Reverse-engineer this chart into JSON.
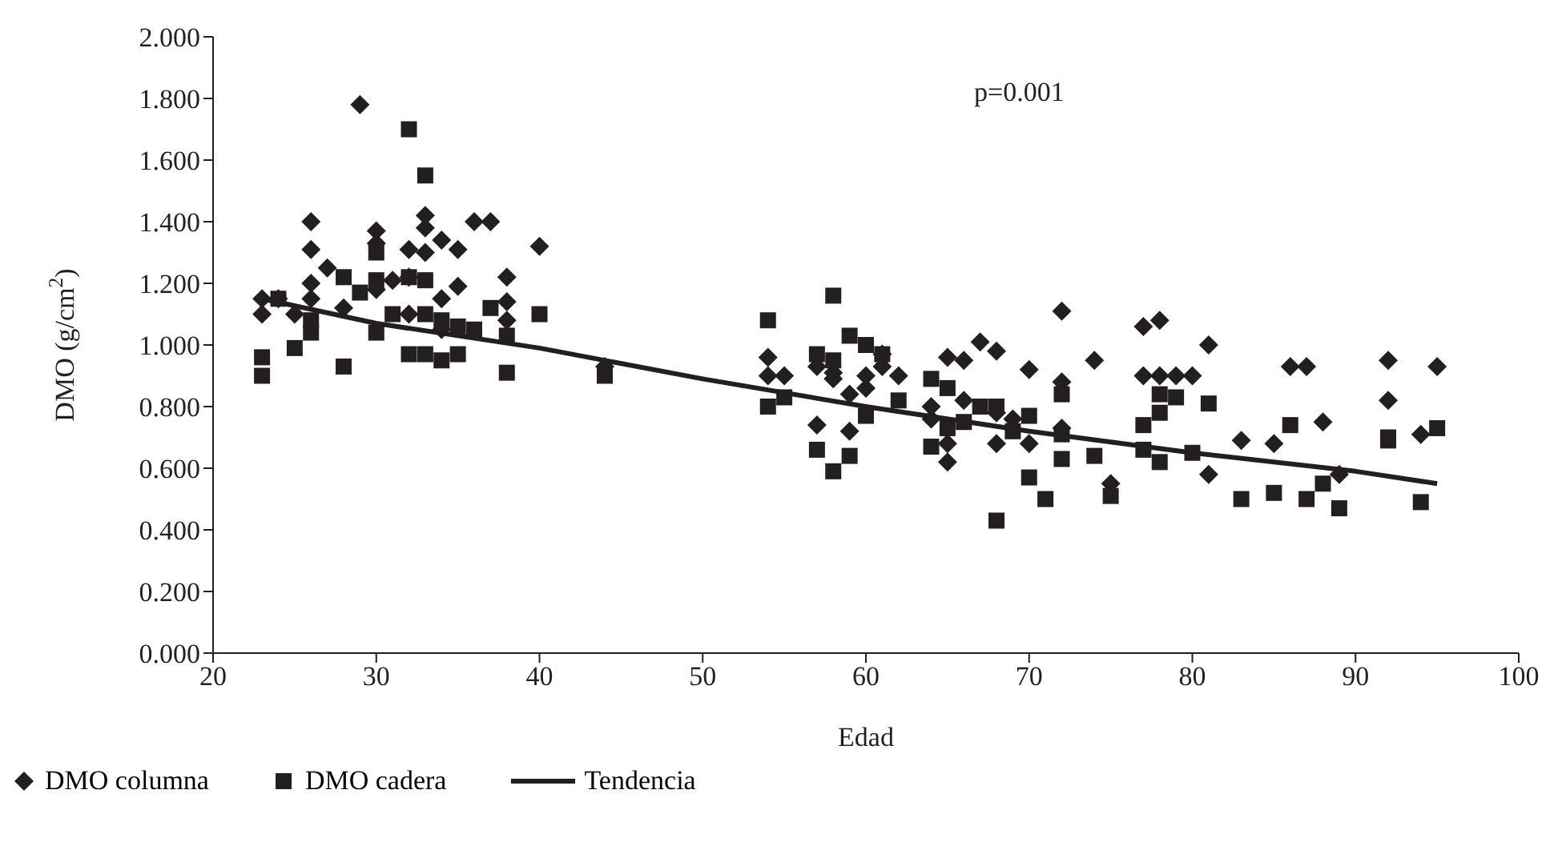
{
  "chart_data": {
    "type": "scatter",
    "xlabel": "Edad",
    "ylabel": "DMO (g/cm$^{2}$)",
    "xlim": [
      20,
      100
    ],
    "xticks": [
      20,
      30,
      40,
      50,
      60,
      70,
      80,
      90,
      100
    ],
    "ylim": [
      0,
      2
    ],
    "yticks": [
      {
        "value": 0,
        "label": "0.000"
      },
      {
        "value": 0.2,
        "label": "0.200"
      },
      {
        "value": 0.4,
        "label": "0.400"
      },
      {
        "value": 0.6,
        "label": "0.600"
      },
      {
        "value": 0.8,
        "label": "0.800"
      },
      {
        "value": 1,
        "label": "1.000"
      },
      {
        "value": 1.2,
        "label": "1.200"
      },
      {
        "value": 1.4,
        "label": "1.400"
      },
      {
        "value": 1.6,
        "label": "1.600"
      },
      {
        "value": 1.8,
        "label": "1.800"
      },
      {
        "value": 2,
        "label": "2.000"
      }
    ],
    "legend": "bottom left",
    "annotations": [
      {
        "text": "p=0.001"
      }
    ],
    "series": [
      {
        "name": "DMO columna",
        "color": "#231f20",
        "marker": "diamond",
        "x": [
          23,
          23,
          24,
          26,
          26,
          26,
          26,
          25,
          27,
          28,
          29,
          30,
          30,
          30,
          31,
          32,
          32,
          33,
          33,
          33,
          34,
          34,
          35,
          35,
          36,
          37,
          38,
          38,
          38,
          40,
          34,
          32,
          44,
          54,
          54,
          55,
          57,
          57,
          58,
          58,
          59,
          59,
          60,
          60,
          61,
          61,
          62,
          64,
          64,
          65,
          65,
          65,
          66,
          66,
          67,
          68,
          68,
          68,
          69,
          70,
          70,
          72,
          72,
          72,
          74,
          75,
          77,
          77,
          78,
          78,
          79,
          80,
          81,
          81,
          83,
          85,
          86,
          87,
          88,
          89,
          92,
          92,
          94,
          95
        ],
        "values": [
          1.1,
          1.15,
          1.15,
          1.4,
          1.31,
          1.2,
          1.15,
          1.1,
          1.25,
          1.12,
          1.78,
          1.37,
          1.33,
          1.18,
          1.21,
          1.31,
          1.1,
          1.42,
          1.38,
          1.3,
          1.34,
          1.15,
          1.31,
          1.19,
          1.4,
          1.4,
          1.22,
          1.14,
          1.08,
          1.32,
          1.05,
          1.22,
          0.93,
          0.96,
          0.9,
          0.9,
          0.74,
          0.93,
          0.91,
          0.89,
          0.72,
          0.84,
          0.9,
          0.86,
          0.97,
          0.93,
          0.9,
          0.8,
          0.76,
          0.96,
          0.62,
          0.68,
          0.82,
          0.95,
          1.01,
          0.98,
          0.78,
          0.68,
          0.76,
          0.92,
          0.68,
          1.11,
          0.88,
          0.73,
          0.95,
          0.55,
          1.06,
          0.9,
          1.08,
          0.9,
          0.9,
          0.9,
          1.0,
          0.58,
          0.69,
          0.68,
          0.93,
          0.93,
          0.75,
          0.58,
          0.95,
          0.82,
          0.71,
          0.93
        ]
      },
      {
        "name": "DMO cadera",
        "color": "#231f20",
        "marker": "square",
        "x": [
          23,
          23,
          24,
          25,
          26,
          26,
          28,
          28,
          29,
          30,
          30,
          30,
          31,
          32,
          32,
          32,
          33,
          33,
          33,
          33,
          34,
          34,
          35,
          35,
          36,
          37,
          38,
          38,
          40,
          44,
          54,
          54,
          55,
          57,
          57,
          58,
          58,
          58,
          59,
          59,
          60,
          60,
          61,
          62,
          64,
          64,
          65,
          65,
          66,
          67,
          68,
          68,
          69,
          70,
          70,
          71,
          72,
          72,
          72,
          74,
          75,
          77,
          77,
          78,
          78,
          78,
          79,
          80,
          81,
          83,
          85,
          86,
          87,
          88,
          89,
          92,
          92,
          94,
          95
        ],
        "values": [
          0.96,
          0.9,
          1.15,
          0.99,
          1.08,
          1.04,
          1.22,
          0.93,
          1.17,
          1.3,
          1.21,
          1.04,
          1.1,
          1.7,
          1.22,
          0.97,
          1.55,
          1.21,
          1.1,
          0.97,
          0.95,
          1.08,
          0.97,
          1.06,
          1.05,
          1.12,
          1.03,
          0.91,
          1.1,
          0.9,
          1.08,
          0.8,
          0.83,
          0.97,
          0.66,
          1.16,
          0.59,
          0.95,
          1.03,
          0.64,
          1.0,
          0.77,
          0.97,
          0.82,
          0.89,
          0.67,
          0.86,
          0.73,
          0.75,
          0.8,
          0.8,
          0.43,
          0.72,
          0.77,
          0.57,
          0.5,
          0.84,
          0.63,
          0.71,
          0.64,
          0.51,
          0.74,
          0.66,
          0.84,
          0.78,
          0.62,
          0.83,
          0.65,
          0.81,
          0.5,
          0.52,
          0.74,
          0.5,
          0.55,
          0.47,
          0.7,
          0.69,
          0.49,
          0.73
        ]
      },
      {
        "name": "Tendencia",
        "type": "line",
        "color": "#231f20",
        "marker": "none",
        "line_style": "solid",
        "x": [
          23,
          30,
          40,
          50,
          60,
          70,
          80,
          90,
          95
        ],
        "values": [
          1.15,
          1.07,
          0.99,
          0.89,
          0.8,
          0.72,
          0.65,
          0.59,
          0.55
        ]
      }
    ]
  }
}
